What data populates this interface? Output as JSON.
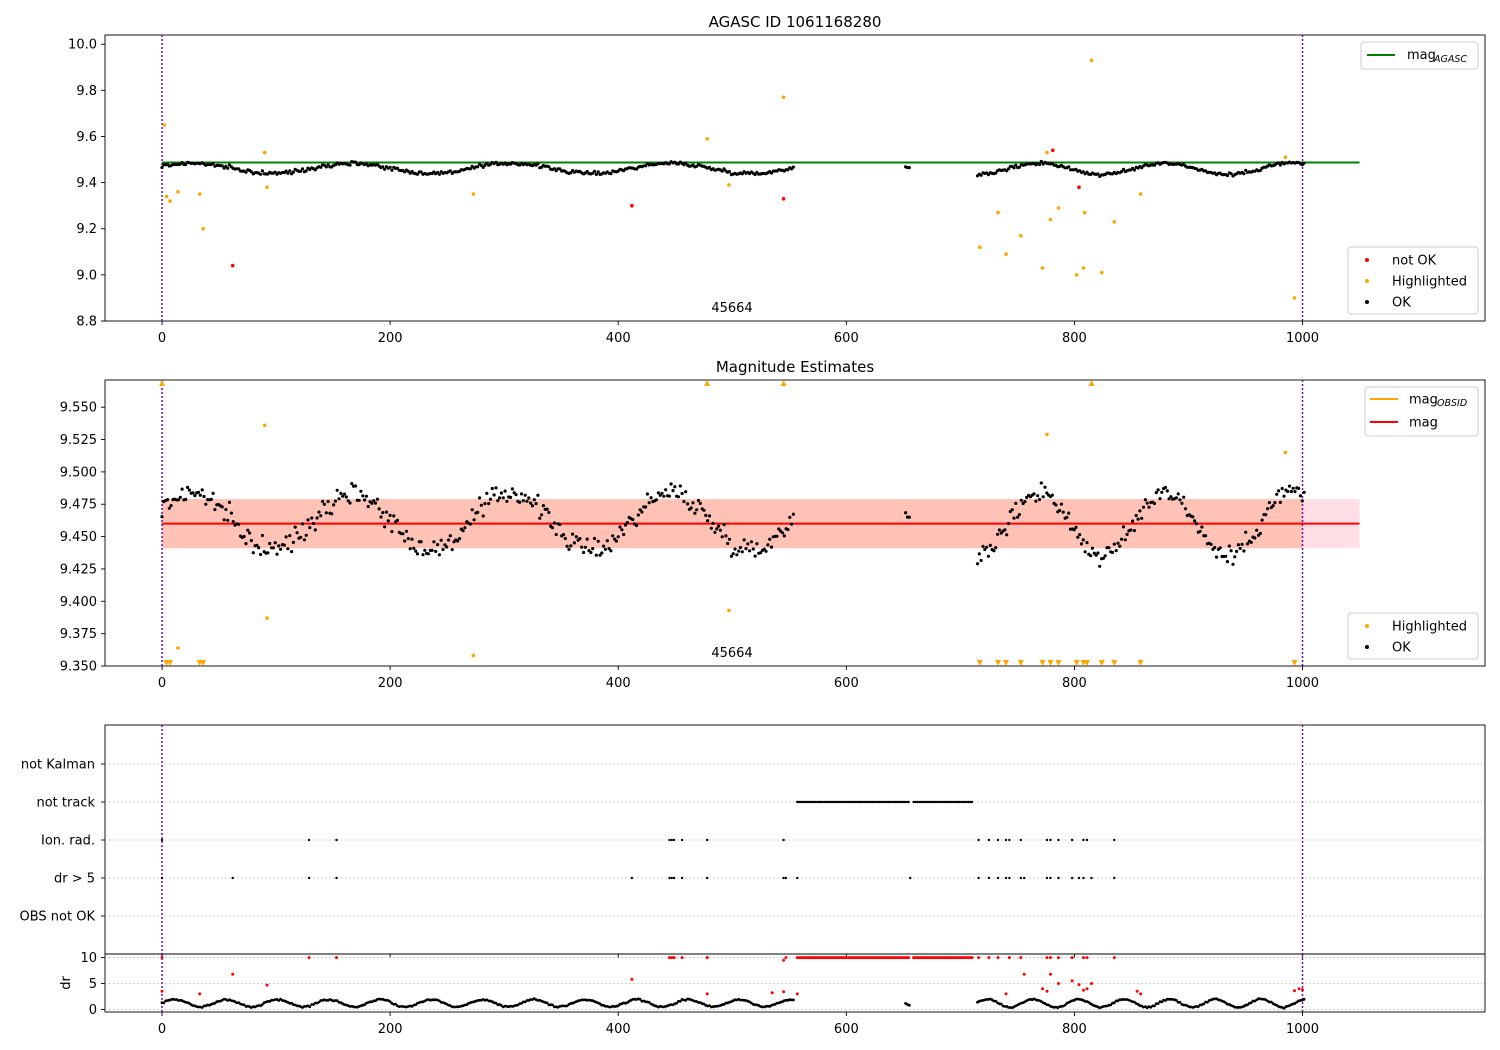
{
  "chart_data": [
    {
      "type": "scatter",
      "title": "AGASC ID 1061168280",
      "xlim": [
        -50,
        1160
      ],
      "ylim": [
        8.8,
        10.04
      ],
      "xticks": [
        0,
        200,
        400,
        600,
        800,
        1000
      ],
      "yticks": [
        8.8,
        9.0,
        9.2,
        9.4,
        9.6,
        9.8,
        10.0
      ],
      "ytick_labels": [
        "8.8",
        "9.0",
        "9.2",
        "9.4",
        "9.6",
        "9.8",
        "10.0"
      ],
      "annotation": {
        "text": "45664",
        "x": 500,
        "y": 8.84
      },
      "vlines": [
        0,
        1000
      ],
      "hline": {
        "label": "mag_AGASC",
        "y": 9.487,
        "x_range": [
          0,
          1050
        ],
        "color": "#008000"
      },
      "legend_top": {
        "position": "upper right",
        "entries": [
          {
            "label": "mag",
            "sub": "AGASC",
            "color": "#008000"
          }
        ]
      },
      "legend_bottom": {
        "position": "lower right",
        "entries": [
          {
            "label": "not OK",
            "color": "#ff0000"
          },
          {
            "label": "Highlighted",
            "color": "#ffa500"
          },
          {
            "label": "OK",
            "color": "#000000"
          }
        ]
      },
      "series": [
        {
          "name": "OK",
          "color": "#000000",
          "segments": [
            {
              "x_start": 0,
              "x_end": 555,
              "base": 9.462,
              "amp": 0.022,
              "period": 140,
              "phase": 0.4
            },
            {
              "x_start": 652,
              "x_end": 656,
              "base": 9.47,
              "amp": 0.005,
              "period": 50,
              "phase": 0
            },
            {
              "x_start": 715,
              "x_end": 1002,
              "base": 9.46,
              "amp": 0.025,
              "period": 110,
              "phase": 1.6
            }
          ]
        },
        {
          "name": "Highlighted",
          "color": "#ffa500",
          "points": [
            [
              2,
              9.65
            ],
            [
              4,
              9.34
            ],
            [
              7,
              9.32
            ],
            [
              14,
              9.36
            ],
            [
              33,
              9.35
            ],
            [
              36,
              9.2
            ],
            [
              90,
              9.53
            ],
            [
              92,
              9.38
            ],
            [
              273,
              9.35
            ],
            [
              478,
              9.59
            ],
            [
              497,
              9.39
            ],
            [
              545,
              9.77
            ],
            [
              717,
              9.12
            ],
            [
              733,
              9.27
            ],
            [
              740,
              9.09
            ],
            [
              753,
              9.17
            ],
            [
              772,
              9.03
            ],
            [
              776,
              9.53
            ],
            [
              779,
              9.24
            ],
            [
              786,
              9.29
            ],
            [
              802,
              9.0
            ],
            [
              808,
              9.03
            ],
            [
              809,
              9.27
            ],
            [
              815,
              9.93
            ],
            [
              824,
              9.01
            ],
            [
              835,
              9.23
            ],
            [
              858,
              9.35
            ],
            [
              985,
              9.51
            ],
            [
              993,
              8.9
            ]
          ]
        },
        {
          "name": "not OK",
          "color": "#ff0000",
          "points": [
            [
              62,
              9.04
            ],
            [
              412,
              9.3
            ],
            [
              545,
              9.33
            ],
            [
              781,
              9.54
            ],
            [
              804,
              9.38
            ]
          ]
        }
      ]
    },
    {
      "type": "scatter",
      "title": "Magnitude Estimates",
      "xlim": [
        -50,
        1160
      ],
      "ylim": [
        9.35,
        9.571
      ],
      "xticks": [
        0,
        200,
        400,
        600,
        800,
        1000
      ],
      "yticks": [
        9.35,
        9.375,
        9.4,
        9.425,
        9.45,
        9.475,
        9.5,
        9.525,
        9.55
      ],
      "ytick_labels": [
        "9.350",
        "9.375",
        "9.400",
        "9.425",
        "9.450",
        "9.475",
        "9.500",
        "9.525",
        "9.550"
      ],
      "annotation": {
        "text": "45664",
        "x": 500,
        "y": 9.357
      },
      "vlines": [
        0,
        1000
      ],
      "mag_line": {
        "label": "mag",
        "y": 9.46,
        "color": "#ff0000"
      },
      "band_pink": {
        "y_range": [
          9.441,
          9.479
        ],
        "x_range": [
          0,
          1050
        ],
        "color": "#ffc0cb"
      },
      "band_obsid": {
        "y_range": [
          9.441,
          9.479
        ],
        "x_range": [
          0,
          1000
        ],
        "color": "#ffa07a"
      },
      "legend_top": {
        "position": "upper right",
        "entries": [
          {
            "label": "mag",
            "sub": "OBSID",
            "color": "#ffa500"
          },
          {
            "label": "mag",
            "sub": "",
            "color": "#ff0000"
          }
        ]
      },
      "legend_bottom": {
        "position": "lower right",
        "entries": [
          {
            "label": "Highlighted",
            "color": "#ffa500"
          },
          {
            "label": "OK",
            "color": "#000000"
          }
        ]
      },
      "series": [
        {
          "name": "OK",
          "color": "#000000",
          "segments": [
            {
              "x_start": 0,
              "x_end": 555,
              "base": 9.462,
              "amp": 0.022,
              "period": 140,
              "phase": 0.4
            },
            {
              "x_start": 652,
              "x_end": 656,
              "base": 9.47,
              "amp": 0.005,
              "period": 50,
              "phase": 0
            },
            {
              "x_start": 715,
              "x_end": 1002,
              "base": 9.46,
              "amp": 0.025,
              "period": 110,
              "phase": 1.6
            }
          ]
        },
        {
          "name": "Highlighted",
          "color": "#ffa500",
          "points": [
            [
              90,
              9.536
            ],
            [
              92,
              9.387
            ],
            [
              14,
              9.364
            ],
            [
              273,
              9.358
            ],
            [
              497,
              9.393
            ],
            [
              776,
              9.529
            ],
            [
              985,
              9.515
            ]
          ]
        },
        {
          "name": "Highlighted (above range)",
          "color": "#ffa500",
          "marker": "triangle-up",
          "x": [
            0,
            478,
            545,
            815
          ]
        },
        {
          "name": "Highlighted (below range)",
          "color": "#ffa500",
          "marker": "triangle-down",
          "x": [
            4,
            7,
            33,
            36,
            717,
            733,
            740,
            753,
            772,
            779,
            786,
            802,
            808,
            811,
            824,
            835,
            858,
            993
          ]
        }
      ]
    },
    {
      "type": "scatter",
      "title": "",
      "xlim": [
        -50,
        1160
      ],
      "categories": [
        "not Kalman",
        "not track",
        "Ion. rad.",
        "dr > 5",
        "OBS not OK"
      ],
      "flags": [
        {
          "category": "not track",
          "ranges": [
            [
              557,
              655
            ],
            [
              659,
              711
            ]
          ]
        },
        {
          "category": "Ion. rad.",
          "x": [
            0,
            129,
            153,
            445,
            447,
            449,
            456,
            478,
            545,
            716,
            725,
            733,
            740,
            743,
            753,
            776,
            779,
            786,
            798,
            808,
            811,
            835
          ]
        },
        {
          "category": "dr > 5",
          "x": [
            0,
            62,
            129,
            153,
            412,
            445,
            447,
            449,
            456,
            478,
            545,
            547,
            557,
            656,
            716,
            725,
            733,
            740,
            743,
            753,
            756,
            776,
            779,
            786,
            798,
            804,
            808,
            815,
            835
          ]
        }
      ]
    },
    {
      "type": "scatter",
      "title": "",
      "ylabel": "dr",
      "xlim": [
        -50,
        1160
      ],
      "ylim": [
        -0.5,
        10.7
      ],
      "xticks": [
        0,
        200,
        400,
        600,
        800,
        1000
      ],
      "yticks": [
        0,
        5,
        10
      ],
      "ytick_labels": [
        "0",
        "5",
        "10"
      ],
      "gridlines_y": [
        0,
        5,
        10
      ],
      "series": [
        {
          "name": "OK",
          "color": "#000000",
          "segments": [
            {
              "x_start": 0,
              "x_end": 555,
              "base": 1.2,
              "amp": 0.7,
              "period": 45,
              "phase": 0
            },
            {
              "x_start": 652,
              "x_end": 656,
              "base": 1.5,
              "amp": 0.5,
              "period": 20,
              "phase": 0
            },
            {
              "x_start": 715,
              "x_end": 1002,
              "base": 1.2,
              "amp": 0.8,
              "period": 40,
              "phase": 1.0
            }
          ]
        },
        {
          "name": "not OK",
          "color": "#ff0000",
          "points": [
            [
              0,
              10
            ],
            [
              0,
              3.5
            ],
            [
              62,
              6.8
            ],
            [
              129,
              10
            ],
            [
              153,
              10
            ],
            [
              33,
              3.0
            ],
            [
              92,
              4.7
            ],
            [
              412,
              5.8
            ],
            [
              445,
              10
            ],
            [
              447,
              10
            ],
            [
              449,
              10
            ],
            [
              456,
              10
            ],
            [
              478,
              10
            ],
            [
              478,
              3.0
            ],
            [
              535,
              3.2
            ],
            [
              545,
              9.5
            ],
            [
              545,
              3.4
            ],
            [
              547,
              10
            ],
            [
              557,
              3.0
            ],
            [
              716,
              10
            ],
            [
              725,
              10
            ],
            [
              733,
              10
            ],
            [
              743,
              10
            ],
            [
              753,
              10
            ],
            [
              756,
              6.8
            ],
            [
              776,
              10
            ],
            [
              779,
              10
            ],
            [
              786,
              10
            ],
            [
              798,
              10
            ],
            [
              808,
              10
            ],
            [
              811,
              10
            ],
            [
              835,
              10
            ],
            [
              740,
              3.0
            ],
            [
              772,
              4.0
            ],
            [
              776,
              3.5
            ],
            [
              779,
              6.8
            ],
            [
              786,
              5.0
            ],
            [
              798,
              5.5
            ],
            [
              804,
              4.8
            ],
            [
              808,
              3.7
            ],
            [
              811,
              4.0
            ],
            [
              815,
              5.0
            ],
            [
              855,
              3.5
            ],
            [
              858,
              3.0
            ],
            [
              993,
              3.6
            ],
            [
              997,
              4.0
            ],
            [
              1000,
              3.8
            ]
          ]
        },
        {
          "name": "not track",
          "color": "#ff0000",
          "ranges": [
            [
              557,
              655
            ],
            [
              659,
              711
            ]
          ],
          "y": 10
        }
      ]
    }
  ]
}
